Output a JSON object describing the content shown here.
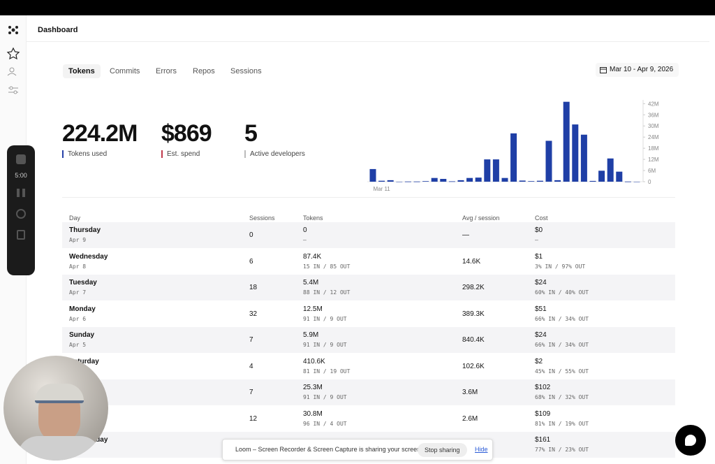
{
  "header": {
    "title": "Dashboard"
  },
  "tabs": [
    "Tokens",
    "Commits",
    "Errors",
    "Repos",
    "Sessions"
  ],
  "date_range": "Mar 10 - Apr 9, 2026",
  "stats": [
    {
      "value": "224.2M",
      "label": "Tokens used",
      "color": "#2741a8"
    },
    {
      "value": "$869",
      "label": "Est. spend",
      "color": "#c0394b"
    },
    {
      "value": "5",
      "label": "Active developers",
      "color": "#bbbbbb"
    }
  ],
  "chart_data": {
    "type": "bar",
    "color": "#1f3fa6",
    "categories": [
      null,
      "Mar 11",
      null,
      null,
      null,
      null,
      null,
      null,
      null,
      null,
      null,
      null,
      null,
      null,
      null,
      null,
      null,
      null,
      null,
      null,
      null,
      null,
      null,
      null,
      null,
      null,
      null,
      null,
      null,
      null,
      null
    ],
    "values": [
      6800000,
      500000,
      800000,
      0,
      100000,
      100000,
      300000,
      2000000,
      1500000,
      200000,
      800000,
      2000000,
      2200000,
      12000000,
      12000000,
      2000000,
      26000000,
      600000,
      300000,
      500000,
      22000000,
      800000,
      43000000,
      30800000,
      25300000,
      410600,
      5900000,
      12500000,
      5400000,
      87400,
      0
    ],
    "ylim": [
      0,
      44000000
    ],
    "yticks": [
      0,
      {
        "value": 6000000,
        "label": "6M"
      },
      {
        "value": 12000000,
        "label": "12M"
      },
      {
        "value": 18000000,
        "label": "18M"
      },
      {
        "value": 24000000,
        "label": "24M"
      },
      {
        "value": 30000000,
        "label": "30M"
      },
      {
        "value": 36000000,
        "label": "36M"
      },
      {
        "value": 42000000,
        "label": "42M"
      }
    ]
  },
  "table": {
    "columns": [
      "Day",
      "Sessions",
      "Tokens",
      "Avg / session",
      "Cost"
    ],
    "rows": [
      {
        "day": "Thursday",
        "date": "Apr 9",
        "sessions": "0",
        "tokens": "0",
        "tokens_split": "—",
        "avg": "—",
        "cost": "$0",
        "cost_split": "—"
      },
      {
        "day": "Wednesday",
        "date": "Apr 8",
        "sessions": "6",
        "tokens": "87.4K",
        "tokens_split": "15 IN / 85 OUT",
        "avg": "14.6K",
        "cost": "$1",
        "cost_split": "3% IN / 97% OUT"
      },
      {
        "day": "Tuesday",
        "date": "Apr 7",
        "sessions": "18",
        "tokens": "5.4M",
        "tokens_split": "88 IN / 12 OUT",
        "avg": "298.2K",
        "cost": "$24",
        "cost_split": "60% IN / 40% OUT"
      },
      {
        "day": "Monday",
        "date": "Apr 6",
        "sessions": "32",
        "tokens": "12.5M",
        "tokens_split": "91 IN / 9 OUT",
        "avg": "389.3K",
        "cost": "$51",
        "cost_split": "66% IN / 34% OUT"
      },
      {
        "day": "Sunday",
        "date": "Apr 5",
        "sessions": "7",
        "tokens": "5.9M",
        "tokens_split": "91 IN / 9 OUT",
        "avg": "840.4K",
        "cost": "$24",
        "cost_split": "66% IN / 34% OUT"
      },
      {
        "day": "Saturday",
        "sessions": "4",
        "tokens": "410.6K",
        "tokens_split": "81 IN / 19 OUT",
        "avg": "102.6K",
        "cost": "$2",
        "cost_split": "45% IN / 55% OUT"
      },
      {
        "sessions": "7",
        "tokens": "25.3M",
        "tokens_split": "91 IN / 9 OUT",
        "avg": "3.6M",
        "cost": "$102",
        "cost_split": "68% IN / 32% OUT"
      },
      {
        "sessions": "12",
        "tokens": "30.8M",
        "tokens_split": "96 IN / 4 OUT",
        "avg": "2.6M",
        "cost": "$109",
        "cost_split": "81% IN / 19% OUT"
      },
      {
        "day": "Wednesday",
        "cost": "$161",
        "cost_split": "77% IN / 23% OUT"
      }
    ]
  },
  "recorder": {
    "time": "5:00"
  },
  "loom": {
    "message": "Loom – Screen Recorder & Screen Capture is sharing your screen.",
    "stop": "Stop sharing",
    "hide": "Hide"
  }
}
